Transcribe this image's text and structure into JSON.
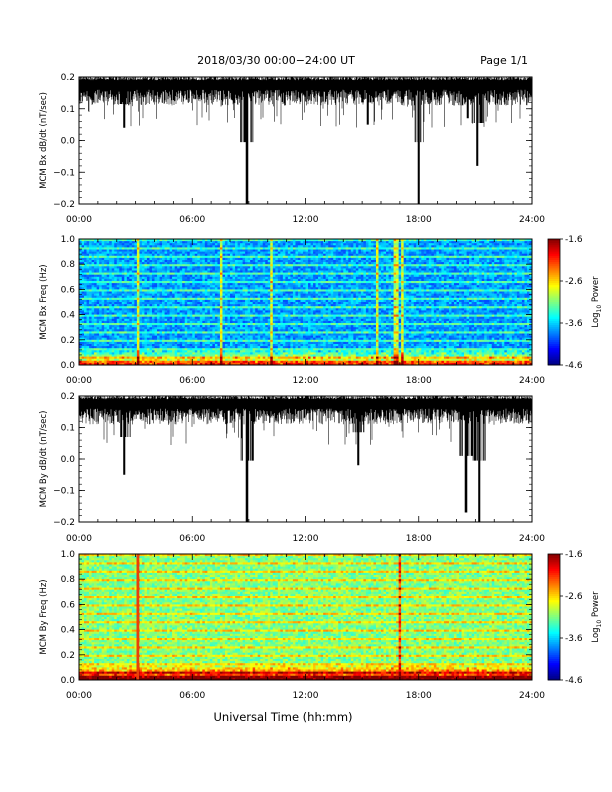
{
  "header": {
    "title": "2018/03/30  00:00−24:00 UT",
    "page": "Page 1/1"
  },
  "xaxis": {
    "label": "Universal Time (hh:mm)",
    "ticks": [
      "00:00",
      "06:00",
      "12:00",
      "18:00",
      "24:00"
    ],
    "range_hours": [
      0,
      24
    ]
  },
  "colorbar": {
    "ticks": [
      "-1.6",
      "-2.6",
      "-3.6",
      "-4.6"
    ],
    "label_main": "Log",
    "label_sub": "10",
    "label_tail": " Power",
    "range": [
      -4.6,
      -1.6
    ]
  },
  "colors": {
    "trace": "#000000",
    "axes": "#000000"
  },
  "chart_data": [
    {
      "type": "line",
      "ylabel": "MCM Bx dB/dt (nT/sec)",
      "yticks": [
        "0.2",
        "0.1",
        "0.0",
        "−0.1",
        "−0.2"
      ],
      "ylim": [
        -0.2,
        0.2
      ],
      "xlim_hours": [
        0,
        24
      ],
      "baseline": 0.19,
      "dips": [
        {
          "hour": 2.4,
          "value": 0.04
        },
        {
          "hour": 8.9,
          "value": -0.2
        },
        {
          "hour": 15.3,
          "value": 0.05
        },
        {
          "hour": 18.0,
          "value": -0.2
        },
        {
          "hour": 20.6,
          "value": 0.07
        },
        {
          "hour": 21.1,
          "value": -0.08
        }
      ]
    },
    {
      "type": "heatmap",
      "ylabel": "MCM Bx Freq (Hz)",
      "yticks": [
        "1.0",
        "0.8",
        "0.6",
        "0.4",
        "0.2",
        "0.0"
      ],
      "ylim": [
        0,
        1.0
      ],
      "xlim_hours": [
        0,
        24
      ],
      "zlim": [
        -4.6,
        -1.6
      ],
      "bright_columns_hours": [
        3.1,
        7.5,
        10.2,
        15.8,
        16.8,
        17.1
      ]
    },
    {
      "type": "line",
      "ylabel": "MCM By dB/dt (nT/sec)",
      "yticks": [
        "0.2",
        "0.1",
        "0.0",
        "−0.1",
        "−0.2"
      ],
      "ylim": [
        -0.2,
        0.2
      ],
      "xlim_hours": [
        0,
        24
      ],
      "baseline": 0.19,
      "dips": [
        {
          "hour": 2.4,
          "value": -0.05
        },
        {
          "hour": 8.9,
          "value": -0.2
        },
        {
          "hour": 14.8,
          "value": -0.02
        },
        {
          "hour": 20.5,
          "value": -0.17
        },
        {
          "hour": 21.2,
          "value": -0.2
        }
      ]
    },
    {
      "type": "heatmap",
      "ylabel": "MCM By Freq (Hz)",
      "yticks": [
        "1.0",
        "0.8",
        "0.6",
        "0.4",
        "0.2",
        "0.0"
      ],
      "ylim": [
        0,
        1.0
      ],
      "xlim_hours": [
        0,
        24
      ],
      "zlim": [
        -4.6,
        -1.6
      ],
      "bright_columns_hours": [
        3.1,
        17.0
      ]
    }
  ]
}
